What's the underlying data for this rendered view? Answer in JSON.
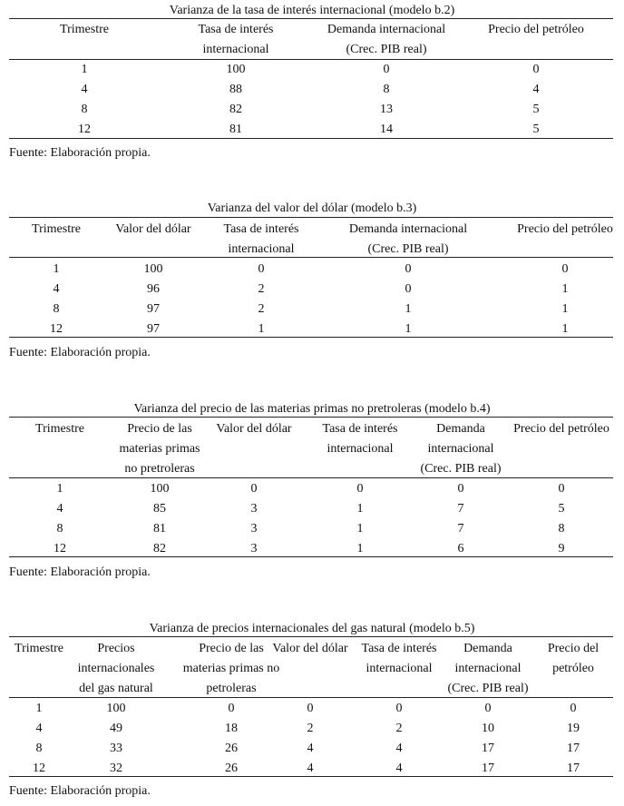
{
  "tables": [
    {
      "title": "Varianza de la tasa de interés internacional (modelo b.2)",
      "headers": [
        [
          "Trimestre"
        ],
        [
          "Tasa de interés",
          "internacional"
        ],
        [
          "Demanda internacional",
          "(Crec. PIB real)"
        ],
        [
          "Precio del petróleo"
        ]
      ],
      "rows": [
        [
          "1",
          "100",
          "0",
          "0"
        ],
        [
          "4",
          "88",
          "8",
          "4"
        ],
        [
          "8",
          "82",
          "13",
          "5"
        ],
        [
          "12",
          "81",
          "14",
          "5"
        ]
      ],
      "source": "Fuente: Elaboración propia."
    },
    {
      "title": "Varianza del valor del dólar (modelo b.3)",
      "headers": [
        [
          "Trimestre"
        ],
        [
          "Valor del dólar"
        ],
        [
          "Tasa de interés",
          "internacional"
        ],
        [
          "Demanda internacional",
          "(Crec. PIB real)"
        ],
        [
          "Precio del petróleo"
        ]
      ],
      "rows": [
        [
          "1",
          "100",
          "0",
          "0",
          "0"
        ],
        [
          "4",
          "96",
          "2",
          "0",
          "1"
        ],
        [
          "8",
          "97",
          "2",
          "1",
          "1"
        ],
        [
          "12",
          "97",
          "1",
          "1",
          "1"
        ]
      ],
      "source": "Fuente: Elaboración propia."
    },
    {
      "title": "Varianza del precio de las materias primas no pretroleras (modelo b.4)",
      "headers": [
        [
          "Trimestre"
        ],
        [
          "Precio de las",
          "materias primas",
          "no pretroleras"
        ],
        [
          "Valor del dólar"
        ],
        [
          "Tasa de interés",
          "internacional"
        ],
        [
          "Demanda",
          "internacional",
          "(Crec. PIB real)"
        ],
        [
          "Precio del petróleo"
        ]
      ],
      "rows": [
        [
          "1",
          "100",
          "0",
          "0",
          "0",
          "0"
        ],
        [
          "4",
          "85",
          "3",
          "1",
          "7",
          "5"
        ],
        [
          "8",
          "81",
          "3",
          "1",
          "7",
          "8"
        ],
        [
          "12",
          "82",
          "3",
          "1",
          "6",
          "9"
        ]
      ],
      "source": "Fuente: Elaboración propia."
    },
    {
      "title": "Varianza de precios internacionales del gas natural (modelo b.5)",
      "headers": [
        [
          "Trimestre"
        ],
        [
          "Precios",
          "internacionales",
          "del gas natural"
        ],
        [
          "Precio de las",
          "materias primas no",
          "petroleras"
        ],
        [
          "Valor del dólar"
        ],
        [
          "Tasa de interés",
          "internacional"
        ],
        [
          "Demanda",
          "internacional",
          "(Crec. PIB real)"
        ],
        [
          "Precio del",
          "petróleo"
        ]
      ],
      "rows": [
        [
          "1",
          "100",
          "0",
          "0",
          "0",
          "0",
          "0"
        ],
        [
          "4",
          "49",
          "18",
          "2",
          "2",
          "10",
          "19"
        ],
        [
          "8",
          "33",
          "26",
          "4",
          "4",
          "17",
          "17"
        ],
        [
          "12",
          "32",
          "26",
          "4",
          "4",
          "17",
          "17"
        ]
      ],
      "source": "Fuente: Elaboración propia."
    }
  ]
}
